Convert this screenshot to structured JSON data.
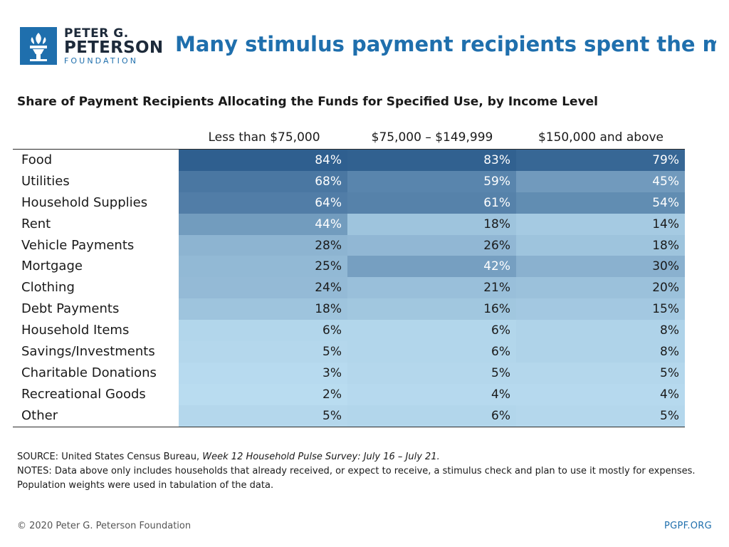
{
  "brand": {
    "line1": "PETER G.",
    "line2": "PETERSON",
    "line3": "FOUNDATION",
    "accent": "#1f6fad"
  },
  "title": "Many stimulus payment recipients spent the m..",
  "chart_data": {
    "type": "table",
    "title": "Share of Payment Recipients Allocating the Funds for Specified Use, by Income Level",
    "columns": [
      "Less than $75,000",
      "$75,000 – $149,999",
      "$150,000 and above"
    ],
    "rows": [
      {
        "label": "Food",
        "values": [
          "84%",
          "83%",
          "79%"
        ]
      },
      {
        "label": "Utilities",
        "values": [
          "68%",
          "59%",
          "45%"
        ]
      },
      {
        "label": "Household Supplies",
        "values": [
          "64%",
          "61%",
          "54%"
        ]
      },
      {
        "label": "Rent",
        "values": [
          "44%",
          "18%",
          "14%"
        ]
      },
      {
        "label": "Vehicle Payments",
        "values": [
          "28%",
          "26%",
          "18%"
        ]
      },
      {
        "label": "Mortgage",
        "values": [
          "25%",
          "42%",
          "30%"
        ]
      },
      {
        "label": "Clothing",
        "values": [
          "24%",
          "21%",
          "20%"
        ]
      },
      {
        "label": "Debt Payments",
        "values": [
          "18%",
          "16%",
          "15%"
        ]
      },
      {
        "label": "Household Items",
        "values": [
          "6%",
          "6%",
          "8%"
        ]
      },
      {
        "label": "Savings/Investments",
        "values": [
          "5%",
          "6%",
          "8%"
        ]
      },
      {
        "label": "Charitable Donations",
        "values": [
          "3%",
          "5%",
          "5%"
        ]
      },
      {
        "label": "Recreational Goods",
        "values": [
          "2%",
          "4%",
          "4%"
        ]
      },
      {
        "label": "Other",
        "values": [
          "5%",
          "6%",
          "5%"
        ]
      }
    ],
    "heat_colors": {
      "low": "#b9dcf0",
      "high": "#2f5f8f"
    }
  },
  "footer": {
    "source_prefix": "SOURCE: United States Census Bureau, ",
    "source_title": "Week 12 Household Pulse Survey: July 16 – July 21.",
    "notes": "NOTES: Data above only includes households that already received, or expect to receive, a stimulus check and plan to use it mostly for expenses. Population weights were used in tabulation of the data.",
    "copyright": "© 2020 Peter G. Peterson Foundation",
    "site": "PGPF.ORG"
  }
}
